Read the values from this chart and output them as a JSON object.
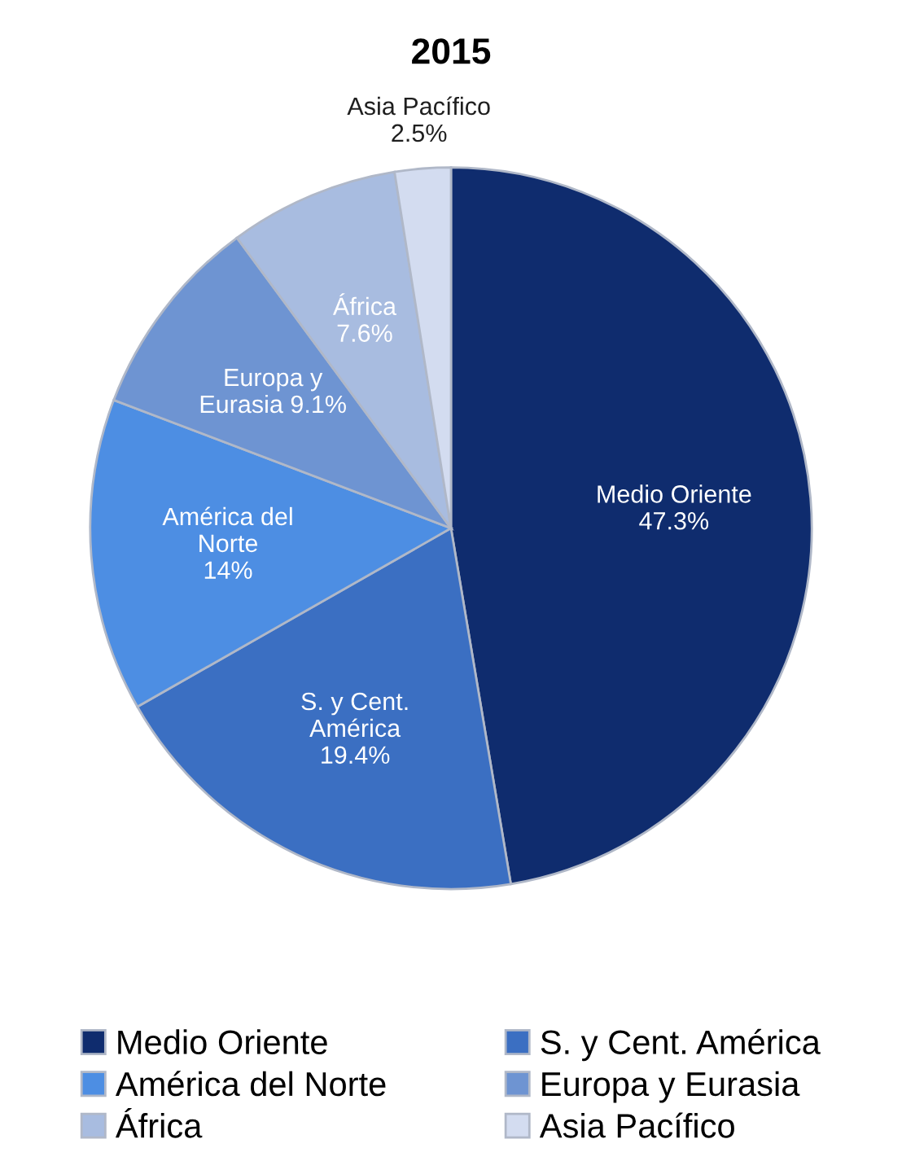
{
  "chart_data": {
    "type": "pie",
    "title": "2015",
    "categories": [
      "Medio Oriente",
      "S. y Cent. América",
      "América del Norte",
      "Europa y Eurasia",
      "África",
      "Asia Pacífico"
    ],
    "values": [
      47.3,
      19.4,
      14,
      9.1,
      7.6,
      2.5
    ],
    "colors": [
      "#0f2c6e",
      "#3b6fc2",
      "#4d8ee3",
      "#6e94d2",
      "#a8bce0",
      "#d3dcf0"
    ],
    "value_labels": [
      "Medio Oriente\n47.3%",
      "S. y Cent.\nAmérica\n19.4%",
      "América del\nNorte\n14%",
      "Europa y\nEurasia 9.1%",
      "África\n7.6%",
      "Asia Pacífico\n2.5%"
    ],
    "legend": "bottom"
  }
}
